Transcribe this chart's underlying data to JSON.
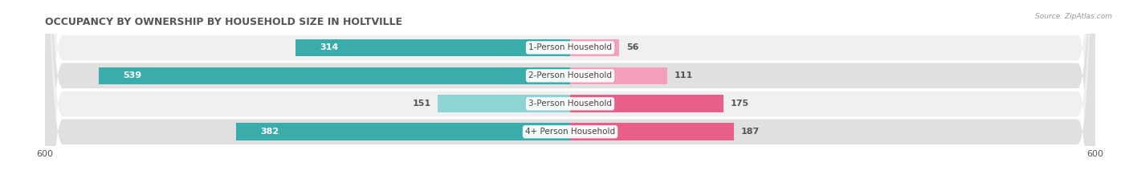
{
  "title": "OCCUPANCY BY OWNERSHIP BY HOUSEHOLD SIZE IN HOLTVILLE",
  "source": "Source: ZipAtlas.com",
  "categories": [
    "1-Person Household",
    "2-Person Household",
    "3-Person Household",
    "4+ Person Household"
  ],
  "owner_values": [
    314,
    539,
    151,
    382
  ],
  "renter_values": [
    56,
    111,
    175,
    187
  ],
  "owner_color_strong": "#3AACAC",
  "owner_color_light": "#8DD4D4",
  "renter_color_strong": "#E8608A",
  "renter_color_light": "#F4A0BC",
  "row_bg_light": "#F0F0F0",
  "row_bg_dark": "#E0E0E0",
  "max_val": 600,
  "title_fontsize": 9,
  "tick_fontsize": 8,
  "bar_label_fontsize": 8,
  "cat_label_fontsize": 7.5,
  "legend_fontsize": 8
}
